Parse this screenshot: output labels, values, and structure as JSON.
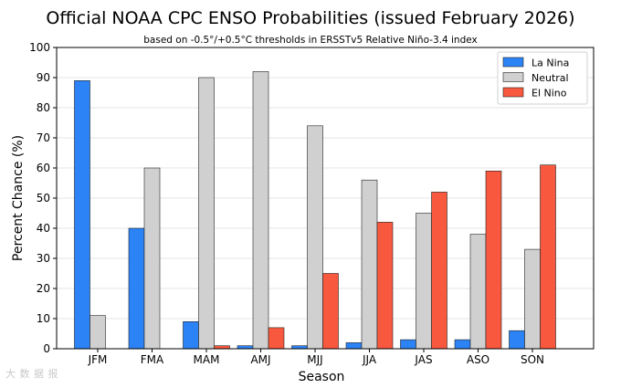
{
  "chart_data": {
    "type": "bar",
    "title": "Official NOAA CPC ENSO Probabilities (issued February 2026)",
    "subtitle": "based on -0.5°/+0.5°C thresholds in ERSSTv5 Relative Niño-3.4 index",
    "xlabel": "Season",
    "ylabel": "Percent Chance (%)",
    "ylim": [
      0,
      100
    ],
    "yticks": [
      "0",
      "10",
      "20",
      "30",
      "40",
      "50",
      "60",
      "70",
      "80",
      "90",
      "100"
    ],
    "grid": true,
    "legend_position": "top-right",
    "categories": [
      "JFM",
      "FMA",
      "MAM",
      "AMJ",
      "MJJ",
      "JJA",
      "JAS",
      "ASO",
      "SON"
    ],
    "series": [
      {
        "name": "La Nina",
        "color": "#2b83f6",
        "values": [
          89,
          40,
          9,
          1,
          1,
          2,
          3,
          3,
          6
        ]
      },
      {
        "name": "Neutral",
        "color": "#d0d0d0",
        "values": [
          11,
          60,
          90,
          92,
          74,
          56,
          45,
          38,
          33
        ]
      },
      {
        "name": "El Nino",
        "color": "#f8593e",
        "values": [
          0,
          0,
          1,
          7,
          25,
          42,
          52,
          59,
          61
        ]
      }
    ]
  },
  "watermark": "大 数 据 报"
}
